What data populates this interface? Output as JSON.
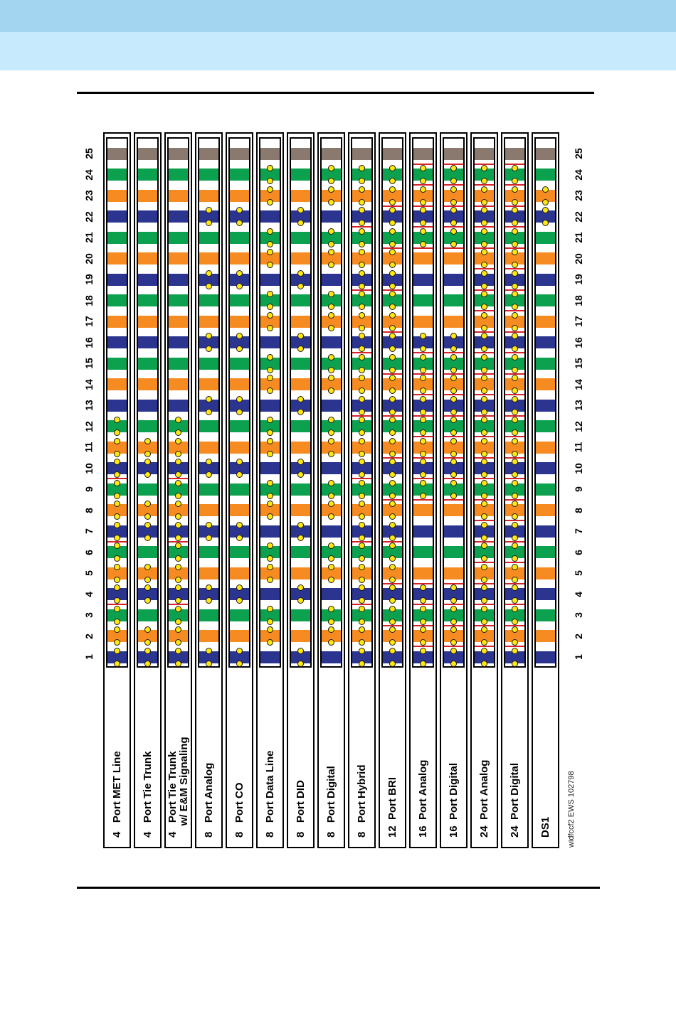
{
  "header": {
    "band_dark_color": "#a3d4f0",
    "band_light_color": "#c7ebfd"
  },
  "watermark": "widfccf2 EWS 102798",
  "figure": {
    "pin_numbers": [
      "1",
      "2",
      "3",
      "4",
      "5",
      "6",
      "7",
      "8",
      "9",
      "10",
      "11",
      "12",
      "13",
      "14",
      "15",
      "16",
      "17",
      "18",
      "19",
      "20",
      "21",
      "22",
      "23",
      "24",
      "25"
    ],
    "colors": {
      "navy": "#2b3590",
      "orange": "#f68b21",
      "green": "#0ca14e",
      "slate": "#8a796e",
      "band_cycle": [
        "navy",
        "orange",
        "green"
      ],
      "pin25": "slate",
      "dot_fill": "#ffe60e",
      "dot_border": "#1a1a1a",
      "separator": "#d4232a"
    },
    "strips": [
      {
        "id": "met-line",
        "label_lines": [
          "4   Port MET Line"
        ],
        "dots": [
          1,
          2,
          3,
          4,
          5,
          6,
          7,
          8,
          9,
          10,
          11,
          12
        ],
        "separators_after": [
          3,
          6,
          9
        ]
      },
      {
        "id": "tie-trunk",
        "label_lines": [
          "4   Port Tie Trunk"
        ],
        "dots": [
          1,
          2,
          4,
          5,
          7,
          8,
          10,
          11
        ],
        "separators_after": []
      },
      {
        "id": "tie-trunk-em",
        "label_lines": [
          "4   Port Tie Trunk",
          "    w/ E&M Signaling"
        ],
        "dots": [
          1,
          2,
          3,
          4,
          5,
          6,
          7,
          8,
          9,
          10,
          11,
          12
        ],
        "separators_after": [
          3,
          6,
          9
        ]
      },
      {
        "id": "analog-8",
        "label_lines": [
          "8   Port Analog"
        ],
        "dots": [
          1,
          4,
          7,
          10,
          13,
          16,
          19,
          22
        ],
        "separators_after": []
      },
      {
        "id": "co-8",
        "label_lines": [
          "8   Port CO"
        ],
        "dots": [
          1,
          4,
          7,
          10,
          13,
          16,
          19,
          22
        ],
        "separators_after": []
      },
      {
        "id": "data-line-8",
        "label_lines": [
          "8   Port Data Line"
        ],
        "dots": [
          2,
          3,
          5,
          6,
          8,
          9,
          11,
          12,
          14,
          15,
          17,
          18,
          20,
          21,
          23,
          24
        ],
        "separators_after": []
      },
      {
        "id": "did-8",
        "label_lines": [
          "8   Port DID"
        ],
        "dots": [
          1,
          4,
          7,
          10,
          13,
          16,
          19,
          22
        ],
        "separators_after": []
      },
      {
        "id": "digital-8",
        "label_lines": [
          "8   Port Digital"
        ],
        "dots": [
          2,
          3,
          5,
          6,
          8,
          9,
          11,
          12,
          14,
          15,
          17,
          18,
          20,
          21,
          23,
          24
        ],
        "separators_after": []
      },
      {
        "id": "hybrid-8",
        "label_lines": [
          "8   Port Hybrid"
        ],
        "dots": [
          1,
          2,
          3,
          4,
          5,
          6,
          7,
          8,
          9,
          10,
          11,
          12,
          13,
          14,
          15,
          16,
          17,
          18,
          19,
          20,
          21,
          22,
          23,
          24
        ],
        "separators_after": [
          3,
          6,
          9,
          12,
          15,
          18,
          21
        ]
      },
      {
        "id": "bri-12",
        "label_lines": [
          "12  Port BRI"
        ],
        "dots": [
          1,
          2,
          3,
          4,
          5,
          6,
          7,
          8,
          9,
          10,
          11,
          12,
          13,
          14,
          15,
          16,
          17,
          18,
          19,
          20,
          21,
          22,
          23,
          24
        ],
        "separators_after": [
          2,
          4,
          6,
          8,
          10,
          12,
          14,
          16,
          18,
          20,
          22
        ]
      },
      {
        "id": "analog-16",
        "label_lines": [
          "16  Port Analog"
        ],
        "dots": [
          1,
          2,
          3,
          4,
          9,
          10,
          11,
          12,
          13,
          14,
          15,
          16,
          21,
          22,
          23,
          24
        ],
        "separators_after": [
          1,
          2,
          3,
          4,
          8,
          9,
          10,
          11,
          12,
          13,
          14,
          15,
          20,
          21,
          22,
          23,
          24
        ]
      },
      {
        "id": "digital-16",
        "label_lines": [
          "16  Port Digital"
        ],
        "dots": [
          1,
          2,
          3,
          4,
          9,
          10,
          11,
          12,
          13,
          14,
          15,
          16,
          21,
          22,
          23,
          24
        ],
        "separators_after": [
          1,
          2,
          3,
          4,
          8,
          9,
          10,
          11,
          12,
          13,
          14,
          15,
          20,
          21,
          22,
          23,
          24
        ]
      },
      {
        "id": "analog-24",
        "label_lines": [
          "24  Port Analog"
        ],
        "dots": [
          1,
          2,
          3,
          4,
          5,
          6,
          7,
          8,
          9,
          10,
          11,
          12,
          13,
          14,
          15,
          16,
          17,
          18,
          19,
          20,
          21,
          22,
          23,
          24
        ],
        "separators_after": [
          1,
          2,
          3,
          4,
          5,
          6,
          7,
          8,
          9,
          10,
          11,
          12,
          13,
          14,
          15,
          16,
          17,
          18,
          19,
          20,
          21,
          22,
          23,
          24
        ]
      },
      {
        "id": "digital-24",
        "label_lines": [
          "24  Port Digital"
        ],
        "dots": [
          1,
          2,
          3,
          4,
          5,
          6,
          7,
          8,
          9,
          10,
          11,
          12,
          13,
          14,
          15,
          16,
          17,
          18,
          19,
          20,
          21,
          22,
          23,
          24
        ],
        "separators_after": [
          1,
          2,
          3,
          4,
          5,
          6,
          7,
          8,
          9,
          10,
          11,
          12,
          13,
          14,
          15,
          16,
          17,
          18,
          19,
          20,
          21,
          22,
          23,
          24
        ]
      },
      {
        "id": "ds1",
        "label_lines": [
          "DS1"
        ],
        "dots": [
          22,
          23
        ],
        "separators_after": []
      }
    ]
  }
}
